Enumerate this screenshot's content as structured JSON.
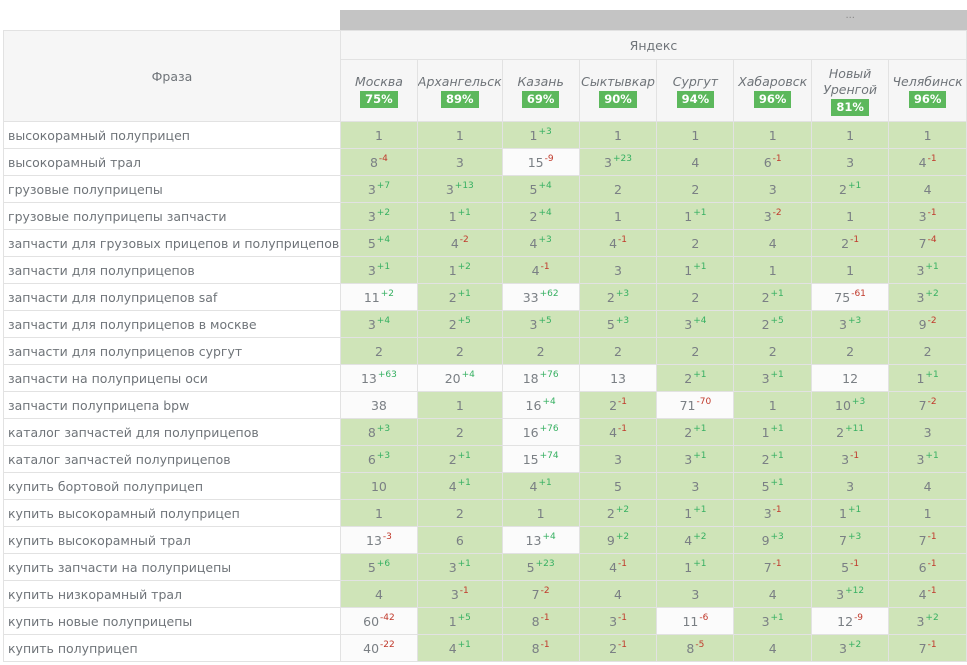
{
  "header": {
    "ellipsis": "...",
    "phrase_label": "Фраза",
    "search_engine": "Яндекс"
  },
  "cities": [
    {
      "name": "Москва",
      "pct": "75%"
    },
    {
      "name": "Архангельск",
      "pct": "89%"
    },
    {
      "name": "Казань",
      "pct": "69%"
    },
    {
      "name": "Сыктывкар",
      "pct": "90%"
    },
    {
      "name": "Сургут",
      "pct": "94%"
    },
    {
      "name": "Хабаровск",
      "pct": "96%"
    },
    {
      "name": "Новый Уренгой",
      "pct": "81%"
    },
    {
      "name": "Челябинск",
      "pct": "96%"
    }
  ],
  "colors": {
    "good": "#cfe4b8",
    "bad": "#fbfbfb",
    "up": "#37b062",
    "down": "#c0392b",
    "badge": "#5cb85c"
  },
  "rows": [
    {
      "phrase": "высокорамный полуприцеп",
      "cells": [
        [
          "1",
          ""
        ],
        [
          "1",
          ""
        ],
        [
          "1",
          "+3"
        ],
        [
          "1",
          ""
        ],
        [
          "1",
          ""
        ],
        [
          "1",
          ""
        ],
        [
          "1",
          ""
        ],
        [
          "1",
          ""
        ]
      ]
    },
    {
      "phrase": "высокорамный трал",
      "cells": [
        [
          "8",
          "-4"
        ],
        [
          "3",
          ""
        ],
        [
          "15",
          "-9"
        ],
        [
          "3",
          "+23"
        ],
        [
          "4",
          ""
        ],
        [
          "6",
          "-1"
        ],
        [
          "3",
          ""
        ],
        [
          "4",
          "-1"
        ]
      ]
    },
    {
      "phrase": "грузовые полуприцепы",
      "cells": [
        [
          "3",
          "+7"
        ],
        [
          "3",
          "+13"
        ],
        [
          "5",
          "+4"
        ],
        [
          "2",
          ""
        ],
        [
          "2",
          ""
        ],
        [
          "3",
          ""
        ],
        [
          "2",
          "+1"
        ],
        [
          "4",
          ""
        ]
      ]
    },
    {
      "phrase": "грузовые полуприцепы запчасти",
      "cells": [
        [
          "3",
          "+2"
        ],
        [
          "1",
          "+1"
        ],
        [
          "2",
          "+4"
        ],
        [
          "1",
          ""
        ],
        [
          "1",
          "+1"
        ],
        [
          "3",
          "-2"
        ],
        [
          "1",
          ""
        ],
        [
          "3",
          "-1"
        ]
      ]
    },
    {
      "phrase": "запчасти для грузовых прицепов и полуприцепов",
      "cells": [
        [
          "5",
          "+4"
        ],
        [
          "4",
          "-2"
        ],
        [
          "4",
          "+3"
        ],
        [
          "4",
          "-1"
        ],
        [
          "2",
          ""
        ],
        [
          "4",
          ""
        ],
        [
          "2",
          "-1"
        ],
        [
          "7",
          "-4"
        ]
      ]
    },
    {
      "phrase": "запчасти для полуприцепов",
      "cells": [
        [
          "3",
          "+1"
        ],
        [
          "1",
          "+2"
        ],
        [
          "4",
          "-1"
        ],
        [
          "3",
          ""
        ],
        [
          "1",
          "+1"
        ],
        [
          "1",
          ""
        ],
        [
          "1",
          ""
        ],
        [
          "3",
          "+1"
        ]
      ]
    },
    {
      "phrase": "запчасти для полуприцепов saf",
      "cells": [
        [
          "11",
          "+2"
        ],
        [
          "2",
          "+1"
        ],
        [
          "33",
          "+62"
        ],
        [
          "2",
          "+3"
        ],
        [
          "2",
          ""
        ],
        [
          "2",
          "+1"
        ],
        [
          "75",
          "-61"
        ],
        [
          "3",
          "+2"
        ]
      ]
    },
    {
      "phrase": "запчасти для полуприцепов в москве",
      "cells": [
        [
          "3",
          "+4"
        ],
        [
          "2",
          "+5"
        ],
        [
          "3",
          "+5"
        ],
        [
          "5",
          "+3"
        ],
        [
          "3",
          "+4"
        ],
        [
          "2",
          "+5"
        ],
        [
          "3",
          "+3"
        ],
        [
          "9",
          "-2"
        ]
      ]
    },
    {
      "phrase": "запчасти для полуприцепов сургут",
      "cells": [
        [
          "2",
          ""
        ],
        [
          "2",
          ""
        ],
        [
          "2",
          ""
        ],
        [
          "2",
          ""
        ],
        [
          "2",
          ""
        ],
        [
          "2",
          ""
        ],
        [
          "2",
          ""
        ],
        [
          "2",
          ""
        ]
      ]
    },
    {
      "phrase": "запчасти на полуприцепы оси",
      "cells": [
        [
          "13",
          "+63"
        ],
        [
          "20",
          "+4"
        ],
        [
          "18",
          "+76"
        ],
        [
          "13",
          ""
        ],
        [
          "2",
          "+1"
        ],
        [
          "3",
          "+1"
        ],
        [
          "12",
          ""
        ],
        [
          "1",
          "+1"
        ]
      ]
    },
    {
      "phrase": "запчасти полуприцепа bpw",
      "cells": [
        [
          "38",
          ""
        ],
        [
          "1",
          ""
        ],
        [
          "16",
          "+4"
        ],
        [
          "2",
          "-1"
        ],
        [
          "71",
          "-70"
        ],
        [
          "1",
          ""
        ],
        [
          "10",
          "+3"
        ],
        [
          "7",
          "-2"
        ]
      ]
    },
    {
      "phrase": "каталог запчастей для полуприцепов",
      "cells": [
        [
          "8",
          "+3"
        ],
        [
          "2",
          ""
        ],
        [
          "16",
          "+76"
        ],
        [
          "4",
          "-1"
        ],
        [
          "2",
          "+1"
        ],
        [
          "1",
          "+1"
        ],
        [
          "2",
          "+11"
        ],
        [
          "3",
          ""
        ]
      ]
    },
    {
      "phrase": "каталог запчастей полуприцепов",
      "cells": [
        [
          "6",
          "+3"
        ],
        [
          "2",
          "+1"
        ],
        [
          "15",
          "+74"
        ],
        [
          "3",
          ""
        ],
        [
          "3",
          "+1"
        ],
        [
          "2",
          "+1"
        ],
        [
          "3",
          "-1"
        ],
        [
          "3",
          "+1"
        ]
      ]
    },
    {
      "phrase": "купить бортовой полуприцеп",
      "cells": [
        [
          "10",
          ""
        ],
        [
          "4",
          "+1"
        ],
        [
          "4",
          "+1"
        ],
        [
          "5",
          ""
        ],
        [
          "3",
          ""
        ],
        [
          "5",
          "+1"
        ],
        [
          "3",
          ""
        ],
        [
          "4",
          ""
        ]
      ]
    },
    {
      "phrase": "купить высокорамный полуприцеп",
      "cells": [
        [
          "1",
          ""
        ],
        [
          "2",
          ""
        ],
        [
          "1",
          ""
        ],
        [
          "2",
          "+2"
        ],
        [
          "1",
          "+1"
        ],
        [
          "3",
          "-1"
        ],
        [
          "1",
          "+1"
        ],
        [
          "1",
          ""
        ]
      ]
    },
    {
      "phrase": "купить высокорамный трал",
      "cells": [
        [
          "13",
          "-3"
        ],
        [
          "6",
          ""
        ],
        [
          "13",
          "+4"
        ],
        [
          "9",
          "+2"
        ],
        [
          "4",
          "+2"
        ],
        [
          "9",
          "+3"
        ],
        [
          "7",
          "+3"
        ],
        [
          "7",
          "-1"
        ]
      ]
    },
    {
      "phrase": "купить запчасти на полуприцепы",
      "cells": [
        [
          "5",
          "+6"
        ],
        [
          "3",
          "+1"
        ],
        [
          "5",
          "+23"
        ],
        [
          "4",
          "-1"
        ],
        [
          "1",
          "+1"
        ],
        [
          "7",
          "-1"
        ],
        [
          "5",
          "-1"
        ],
        [
          "6",
          "-1"
        ]
      ]
    },
    {
      "phrase": "купить низкорамный трал",
      "cells": [
        [
          "4",
          ""
        ],
        [
          "3",
          "-1"
        ],
        [
          "7",
          "-2"
        ],
        [
          "4",
          ""
        ],
        [
          "3",
          ""
        ],
        [
          "4",
          ""
        ],
        [
          "3",
          "+12"
        ],
        [
          "4",
          "-1"
        ]
      ]
    },
    {
      "phrase": "купить новые полуприцепы",
      "cells": [
        [
          "60",
          "-42"
        ],
        [
          "1",
          "+5"
        ],
        [
          "8",
          "-1"
        ],
        [
          "3",
          "-1"
        ],
        [
          "11",
          "-6"
        ],
        [
          "3",
          "+1"
        ],
        [
          "12",
          "-9"
        ],
        [
          "3",
          "+2"
        ]
      ]
    },
    {
      "phrase": "купить полуприцеп",
      "cells": [
        [
          "40",
          "-22"
        ],
        [
          "4",
          "+1"
        ],
        [
          "8",
          "-1"
        ],
        [
          "2",
          "-1"
        ],
        [
          "8",
          "-5"
        ],
        [
          "4",
          ""
        ],
        [
          "3",
          "+2"
        ],
        [
          "7",
          "-1"
        ]
      ]
    }
  ]
}
